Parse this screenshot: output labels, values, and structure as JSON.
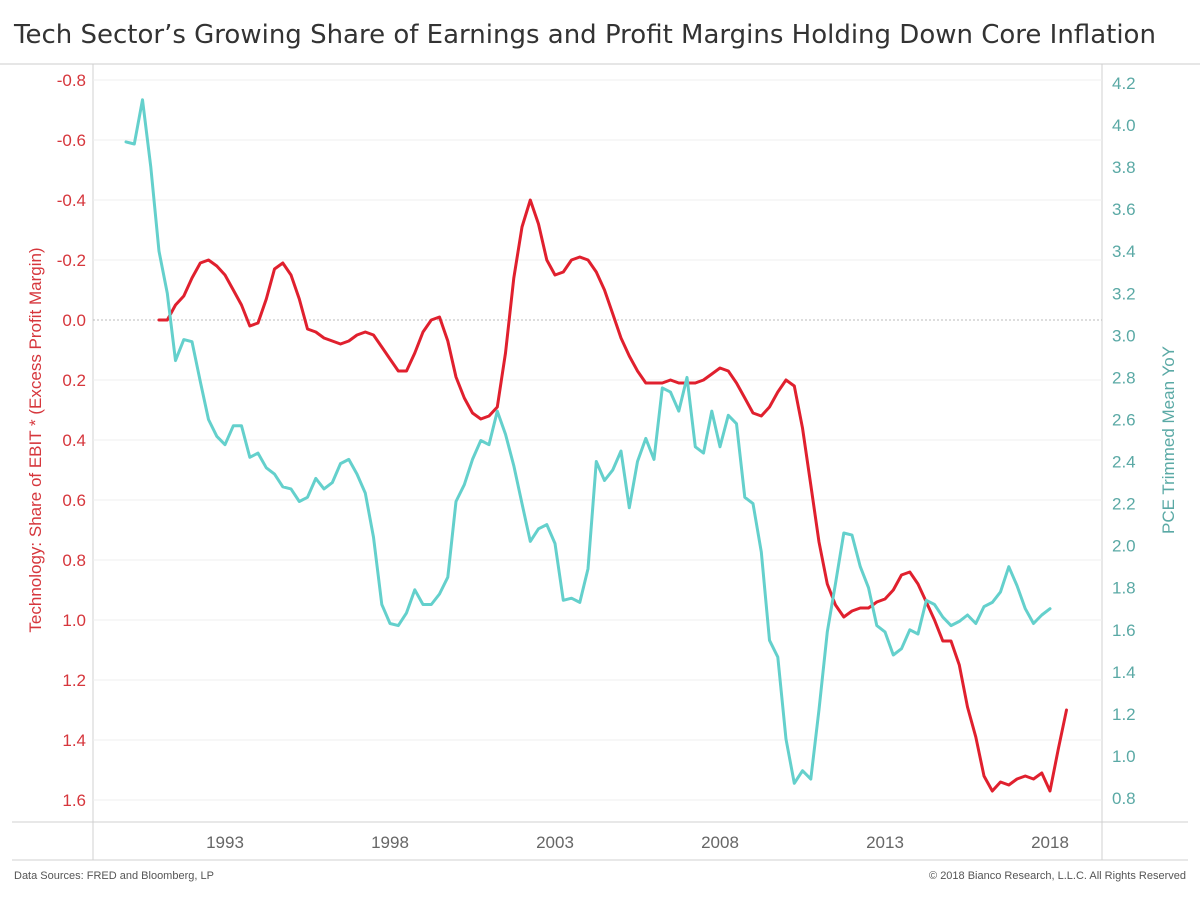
{
  "title": "Tech Sector’s Growing Share of Earnings and Profit Margins Holding Down Core Inflation",
  "footer": {
    "source": "Data Sources: FRED and Bloomberg, LP",
    "copyright": "© 2018 Bianco Research, L.L.C. All Rights Reserved"
  },
  "colors": {
    "left_series": "#e0202e",
    "right_series": "#64d0cc",
    "left_axis": "#d6363c",
    "right_axis": "#5aa9a5"
  },
  "chart_data": {
    "type": "line",
    "x_axis": {
      "min": 1988.8,
      "max": 2019.7,
      "ticks": [
        1993,
        1998,
        2003,
        2008,
        2013,
        2018
      ]
    },
    "left_axis": {
      "label": "Technology: Share of EBIT * (Excess Profit Margin)",
      "min": -0.8,
      "max": 1.6,
      "inverted": true,
      "ticks": [
        -0.8,
        -0.6,
        -0.4,
        -0.2,
        0.0,
        0.2,
        0.4,
        0.6,
        0.8,
        1.0,
        1.2,
        1.4,
        1.6
      ],
      "tick_labels": [
        "-0.8",
        "-0.6",
        "-0.4",
        "-0.2",
        "0.0",
        "0.2",
        "0.4",
        "0.6",
        "0.8",
        "1.0",
        "1.2",
        "1.4",
        "1.6"
      ]
    },
    "right_axis": {
      "label": "PCE Trimmed Mean YoY",
      "min": 0.8,
      "max": 4.2,
      "ticks": [
        0.8,
        1.0,
        1.2,
        1.4,
        1.6,
        1.8,
        2.0,
        2.2,
        2.4,
        2.6,
        2.8,
        3.0,
        3.2,
        3.4,
        3.6,
        3.8,
        4.0,
        4.2
      ],
      "tick_labels": [
        "0.8",
        "1.0",
        "1.2",
        "1.4",
        "1.6",
        "1.8",
        "2.0",
        "2.2",
        "2.4",
        "2.6",
        "2.8",
        "3.0",
        "3.2",
        "3.4",
        "3.6",
        "3.8",
        "4.0",
        "4.2"
      ]
    },
    "series": [
      {
        "axis": "left",
        "points": [
          [
            1991.0,
            0.0
          ],
          [
            1991.25,
            0.0
          ],
          [
            1991.5,
            -0.05
          ],
          [
            1991.75,
            -0.08
          ],
          [
            1992.0,
            -0.14
          ],
          [
            1992.25,
            -0.19
          ],
          [
            1992.5,
            -0.2
          ],
          [
            1992.75,
            -0.18
          ],
          [
            1993.0,
            -0.15
          ],
          [
            1993.25,
            -0.1
          ],
          [
            1993.5,
            -0.05
          ],
          [
            1993.75,
            0.02
          ],
          [
            1994.0,
            0.01
          ],
          [
            1994.25,
            -0.07
          ],
          [
            1994.5,
            -0.17
          ],
          [
            1994.75,
            -0.19
          ],
          [
            1995.0,
            -0.15
          ],
          [
            1995.25,
            -0.07
          ],
          [
            1995.5,
            0.03
          ],
          [
            1995.75,
            0.04
          ],
          [
            1996.0,
            0.06
          ],
          [
            1996.25,
            0.07
          ],
          [
            1996.5,
            0.08
          ],
          [
            1996.75,
            0.07
          ],
          [
            1997.0,
            0.05
          ],
          [
            1997.25,
            0.04
          ],
          [
            1997.5,
            0.05
          ],
          [
            1997.75,
            0.09
          ],
          [
            1998.0,
            0.13
          ],
          [
            1998.25,
            0.17
          ],
          [
            1998.5,
            0.17
          ],
          [
            1998.75,
            0.11
          ],
          [
            1999.0,
            0.04
          ],
          [
            1999.25,
            0.0
          ],
          [
            1999.5,
            -0.01
          ],
          [
            1999.75,
            0.07
          ],
          [
            2000.0,
            0.19
          ],
          [
            2000.25,
            0.26
          ],
          [
            2000.5,
            0.31
          ],
          [
            2000.75,
            0.33
          ],
          [
            2001.0,
            0.32
          ],
          [
            2001.25,
            0.29
          ],
          [
            2001.5,
            0.11
          ],
          [
            2001.75,
            -0.14
          ],
          [
            2002.0,
            -0.31
          ],
          [
            2002.25,
            -0.4
          ],
          [
            2002.5,
            -0.32
          ],
          [
            2002.75,
            -0.2
          ],
          [
            2003.0,
            -0.15
          ],
          [
            2003.25,
            -0.16
          ],
          [
            2003.5,
            -0.2
          ],
          [
            2003.75,
            -0.21
          ],
          [
            2004.0,
            -0.2
          ],
          [
            2004.25,
            -0.16
          ],
          [
            2004.5,
            -0.1
          ],
          [
            2004.75,
            -0.02
          ],
          [
            2005.0,
            0.06
          ],
          [
            2005.25,
            0.12
          ],
          [
            2005.5,
            0.17
          ],
          [
            2005.75,
            0.21
          ],
          [
            2006.0,
            0.21
          ],
          [
            2006.25,
            0.21
          ],
          [
            2006.5,
            0.2
          ],
          [
            2006.75,
            0.21
          ],
          [
            2007.0,
            0.21
          ],
          [
            2007.25,
            0.21
          ],
          [
            2007.5,
            0.2
          ],
          [
            2007.75,
            0.18
          ],
          [
            2008.0,
            0.16
          ],
          [
            2008.25,
            0.17
          ],
          [
            2008.5,
            0.21
          ],
          [
            2008.75,
            0.26
          ],
          [
            2009.0,
            0.31
          ],
          [
            2009.25,
            0.32
          ],
          [
            2009.5,
            0.29
          ],
          [
            2009.75,
            0.24
          ],
          [
            2010.0,
            0.2
          ],
          [
            2010.25,
            0.22
          ],
          [
            2010.5,
            0.36
          ],
          [
            2010.75,
            0.55
          ],
          [
            2011.0,
            0.74
          ],
          [
            2011.25,
            0.88
          ],
          [
            2011.5,
            0.95
          ],
          [
            2011.75,
            0.99
          ],
          [
            2012.0,
            0.97
          ],
          [
            2012.25,
            0.96
          ],
          [
            2012.5,
            0.96
          ],
          [
            2012.75,
            0.94
          ],
          [
            2013.0,
            0.93
          ],
          [
            2013.25,
            0.9
          ],
          [
            2013.5,
            0.85
          ],
          [
            2013.75,
            0.84
          ],
          [
            2014.0,
            0.88
          ],
          [
            2014.25,
            0.94
          ],
          [
            2014.5,
            1.0
          ],
          [
            2014.75,
            1.07
          ],
          [
            2015.0,
            1.07
          ],
          [
            2015.25,
            1.15
          ],
          [
            2015.5,
            1.29
          ],
          [
            2015.75,
            1.39
          ],
          [
            2016.0,
            1.52
          ],
          [
            2016.25,
            1.57
          ],
          [
            2016.5,
            1.54
          ],
          [
            2016.75,
            1.55
          ],
          [
            2017.0,
            1.53
          ],
          [
            2017.25,
            1.52
          ],
          [
            2017.5,
            1.53
          ],
          [
            2017.75,
            1.51
          ],
          [
            2018.0,
            1.57
          ],
          [
            2018.25,
            1.43
          ],
          [
            2018.5,
            1.3
          ]
        ]
      },
      {
        "axis": "right",
        "points": [
          [
            1990.0,
            3.92
          ],
          [
            1990.25,
            3.91
          ],
          [
            1990.5,
            4.12
          ],
          [
            1990.75,
            3.8
          ],
          [
            1991.0,
            3.4
          ],
          [
            1991.25,
            3.2
          ],
          [
            1991.5,
            2.88
          ],
          [
            1991.75,
            2.98
          ],
          [
            1992.0,
            2.97
          ],
          [
            1992.25,
            2.78
          ],
          [
            1992.5,
            2.6
          ],
          [
            1992.75,
            2.52
          ],
          [
            1993.0,
            2.48
          ],
          [
            1993.25,
            2.57
          ],
          [
            1993.5,
            2.57
          ],
          [
            1993.75,
            2.42
          ],
          [
            1994.0,
            2.44
          ],
          [
            1994.25,
            2.37
          ],
          [
            1994.5,
            2.34
          ],
          [
            1994.75,
            2.28
          ],
          [
            1995.0,
            2.27
          ],
          [
            1995.25,
            2.21
          ],
          [
            1995.5,
            2.23
          ],
          [
            1995.75,
            2.32
          ],
          [
            1996.0,
            2.27
          ],
          [
            1996.25,
            2.3
          ],
          [
            1996.5,
            2.39
          ],
          [
            1996.75,
            2.41
          ],
          [
            1997.0,
            2.34
          ],
          [
            1997.25,
            2.25
          ],
          [
            1997.5,
            2.04
          ],
          [
            1997.75,
            1.72
          ],
          [
            1998.0,
            1.63
          ],
          [
            1998.25,
            1.62
          ],
          [
            1998.5,
            1.68
          ],
          [
            1998.75,
            1.79
          ],
          [
            1999.0,
            1.72
          ],
          [
            1999.25,
            1.72
          ],
          [
            1999.5,
            1.77
          ],
          [
            1999.75,
            1.85
          ],
          [
            2000.0,
            2.21
          ],
          [
            2000.25,
            2.29
          ],
          [
            2000.5,
            2.41
          ],
          [
            2000.75,
            2.5
          ],
          [
            2001.0,
            2.48
          ],
          [
            2001.25,
            2.64
          ],
          [
            2001.5,
            2.53
          ],
          [
            2001.75,
            2.38
          ],
          [
            2002.0,
            2.2
          ],
          [
            2002.25,
            2.02
          ],
          [
            2002.5,
            2.08
          ],
          [
            2002.75,
            2.1
          ],
          [
            2003.0,
            2.01
          ],
          [
            2003.25,
            1.74
          ],
          [
            2003.5,
            1.75
          ],
          [
            2003.75,
            1.73
          ],
          [
            2004.0,
            1.89
          ],
          [
            2004.25,
            2.4
          ],
          [
            2004.5,
            2.31
          ],
          [
            2004.75,
            2.36
          ],
          [
            2005.0,
            2.45
          ],
          [
            2005.25,
            2.18
          ],
          [
            2005.5,
            2.4
          ],
          [
            2005.75,
            2.51
          ],
          [
            2006.0,
            2.41
          ],
          [
            2006.25,
            2.75
          ],
          [
            2006.5,
            2.73
          ],
          [
            2006.75,
            2.64
          ],
          [
            2007.0,
            2.8
          ],
          [
            2007.25,
            2.47
          ],
          [
            2007.5,
            2.44
          ],
          [
            2007.75,
            2.64
          ],
          [
            2008.0,
            2.47
          ],
          [
            2008.25,
            2.62
          ],
          [
            2008.5,
            2.58
          ],
          [
            2008.75,
            2.23
          ],
          [
            2009.0,
            2.2
          ],
          [
            2009.25,
            1.97
          ],
          [
            2009.5,
            1.55
          ],
          [
            2009.75,
            1.47
          ],
          [
            2010.0,
            1.08
          ],
          [
            2010.25,
            0.87
          ],
          [
            2010.5,
            0.93
          ],
          [
            2010.75,
            0.89
          ],
          [
            2011.0,
            1.22
          ],
          [
            2011.25,
            1.59
          ],
          [
            2011.5,
            1.82
          ],
          [
            2011.75,
            2.06
          ],
          [
            2012.0,
            2.05
          ],
          [
            2012.25,
            1.9
          ],
          [
            2012.5,
            1.8
          ],
          [
            2012.75,
            1.62
          ],
          [
            2013.0,
            1.59
          ],
          [
            2013.25,
            1.48
          ],
          [
            2013.5,
            1.51
          ],
          [
            2013.75,
            1.6
          ],
          [
            2014.0,
            1.58
          ],
          [
            2014.25,
            1.74
          ],
          [
            2014.5,
            1.72
          ],
          [
            2014.75,
            1.66
          ],
          [
            2015.0,
            1.62
          ],
          [
            2015.25,
            1.64
          ],
          [
            2015.5,
            1.67
          ],
          [
            2015.75,
            1.63
          ],
          [
            2016.0,
            1.71
          ],
          [
            2016.25,
            1.73
          ],
          [
            2016.5,
            1.78
          ],
          [
            2016.75,
            1.9
          ],
          [
            2017.0,
            1.81
          ],
          [
            2017.25,
            1.7
          ],
          [
            2017.5,
            1.63
          ],
          [
            2017.75,
            1.67
          ],
          [
            2018.0,
            1.7
          ]
        ]
      }
    ]
  }
}
